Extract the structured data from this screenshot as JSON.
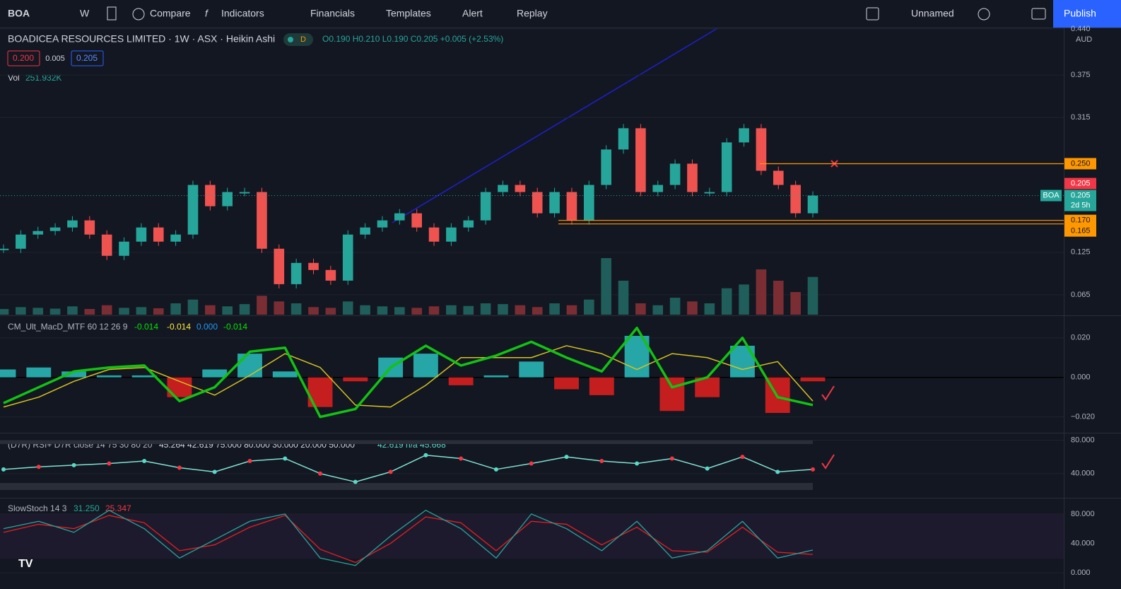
{
  "toolbar": {
    "symbol": "BOA",
    "interval": "W",
    "items": [
      "Compare",
      "Indicators",
      "Financials",
      "Templates",
      "Alert",
      "Replay"
    ],
    "layout_name": "Unnamed",
    "publish": "Publish"
  },
  "header": {
    "title": "BOADICEA RESOURCES LIMITED · 1W · ASX · Heikin Ashi",
    "badge": "D",
    "ohlc": "O0.190 H0.210 L0.190 C0.205 +0.005 (+2.53%)",
    "bid": "0.200",
    "spread": "0.005",
    "ask": "0.205",
    "vol_label": "Vol",
    "vol_value": "251.932K",
    "currency": "AUD"
  },
  "price_chart": {
    "type": "line",
    "ylim": [
      0.037,
      0.441
    ],
    "yticks": [
      {
        "value": 0.065,
        "label": "0.065"
      },
      {
        "value": 0.125,
        "label": "0.125"
      },
      {
        "value": 0.315,
        "label": "0.315"
      },
      {
        "value": 0.375,
        "label": "0.375"
      },
      {
        "value": 0.44,
        "label": "0.440"
      }
    ],
    "close": [
      0.13,
      0.15,
      0.155,
      0.16,
      0.17,
      0.15,
      0.12,
      0.14,
      0.16,
      0.14,
      0.15,
      0.22,
      0.19,
      0.21,
      0.21,
      0.13,
      0.08,
      0.11,
      0.1,
      0.085,
      0.15,
      0.16,
      0.17,
      0.18,
      0.16,
      0.14,
      0.16,
      0.17,
      0.21,
      0.22,
      0.21,
      0.18,
      0.21,
      0.17,
      0.22,
      0.27,
      0.3,
      0.21,
      0.22,
      0.25,
      0.21,
      0.21,
      0.28,
      0.3,
      0.24,
      0.22,
      0.18,
      0.205
    ],
    "volume": [
      150,
      200,
      180,
      160,
      220,
      150,
      250,
      180,
      200,
      170,
      300,
      400,
      250,
      220,
      280,
      500,
      350,
      300,
      200,
      180,
      350,
      250,
      220,
      200,
      180,
      220,
      250,
      230,
      300,
      280,
      250,
      200,
      300,
      250,
      400,
      1500,
      900,
      300,
      250,
      450,
      350,
      300,
      700,
      800,
      1200,
      900,
      600,
      1000
    ],
    "levels": [
      {
        "value": 0.25,
        "label": "0.250"
      },
      {
        "value": 0.17,
        "label": "0.170"
      },
      {
        "value": 0.165,
        "label": "0.165"
      }
    ],
    "last": {
      "symbol": "BOA",
      "value": 0.205,
      "label": "0.205",
      "countdown": "2d 5h"
    }
  },
  "macd": {
    "type": "line",
    "legend": "CM_Ult_MacD_MTF 60 12 26 9",
    "legend_values": [
      "-0.014",
      "-0.014",
      "0.000",
      "-0.014"
    ],
    "ylim": [
      -0.028,
      0.031
    ],
    "yticks": [
      {
        "value": -0.02,
        "label": "−0.020"
      },
      {
        "value": 0,
        "label": "0.000"
      },
      {
        "value": 0.02,
        "label": "0.020"
      }
    ],
    "macd": [
      -0.013,
      -0.005,
      0.003,
      0.005,
      0.006,
      -0.012,
      -0.005,
      0.013,
      0.015,
      -0.02,
      -0.016,
      0.005,
      0.016,
      0.006,
      0.011,
      0.018,
      0.01,
      0.003,
      0.025,
      -0.005,
      0.0,
      0.02,
      -0.01,
      -0.014
    ],
    "signal": [
      -0.015,
      -0.01,
      -0.002,
      0.004,
      0.005,
      -0.002,
      -0.009,
      0.001,
      0.012,
      0.005,
      -0.014,
      -0.015,
      -0.004,
      0.01,
      0.01,
      0.01,
      0.016,
      0.012,
      0.004,
      0.012,
      0.01,
      0.004,
      0.008,
      -0.012
    ],
    "hist": [
      0.004,
      0.005,
      0.003,
      0.001,
      0.001,
      -0.01,
      0.004,
      0.012,
      0.003,
      -0.015,
      -0.002,
      0.01,
      0.012,
      -0.004,
      0.001,
      0.008,
      -0.006,
      -0.009,
      0.021,
      -0.017,
      -0.01,
      0.016,
      -0.018,
      -0.002
    ]
  },
  "rsi": {
    "type": "line",
    "legend": "(D7R) RSI+ D7R close 14 75 30 80 20",
    "legend_values": "45.264 42.619 75.000 80.000 30.000 20.000 50.000",
    "legend_tail": "42.619 n/a 45.668",
    "ylim": [
      11,
      88
    ],
    "yticks": [
      {
        "value": 40,
        "label": "40.000"
      },
      {
        "value": 80,
        "label": "80.000"
      }
    ],
    "values": [
      45,
      48,
      50,
      52,
      55,
      47,
      42,
      55,
      58,
      40,
      30,
      42,
      62,
      58,
      45,
      52,
      60,
      55,
      52,
      58,
      46,
      60,
      42,
      45
    ]
  },
  "stoch": {
    "type": "line",
    "legend": "SlowStoch 14 3",
    "legend_k": "31.250",
    "legend_d": "25.347",
    "ylim": [
      -22,
      101
    ],
    "yticks": [
      {
        "value": 0,
        "label": "0.000"
      },
      {
        "value": 40,
        "label": "40.000"
      },
      {
        "value": 80,
        "label": "80.000"
      }
    ],
    "k": [
      60,
      70,
      55,
      85,
      60,
      20,
      45,
      70,
      80,
      20,
      10,
      50,
      85,
      60,
      20,
      80,
      60,
      30,
      70,
      20,
      30,
      70,
      20,
      31
    ],
    "d": [
      55,
      66,
      60,
      78,
      68,
      30,
      38,
      62,
      78,
      32,
      14,
      40,
      76,
      68,
      30,
      70,
      66,
      38,
      62,
      30,
      28,
      62,
      28,
      25
    ]
  }
}
